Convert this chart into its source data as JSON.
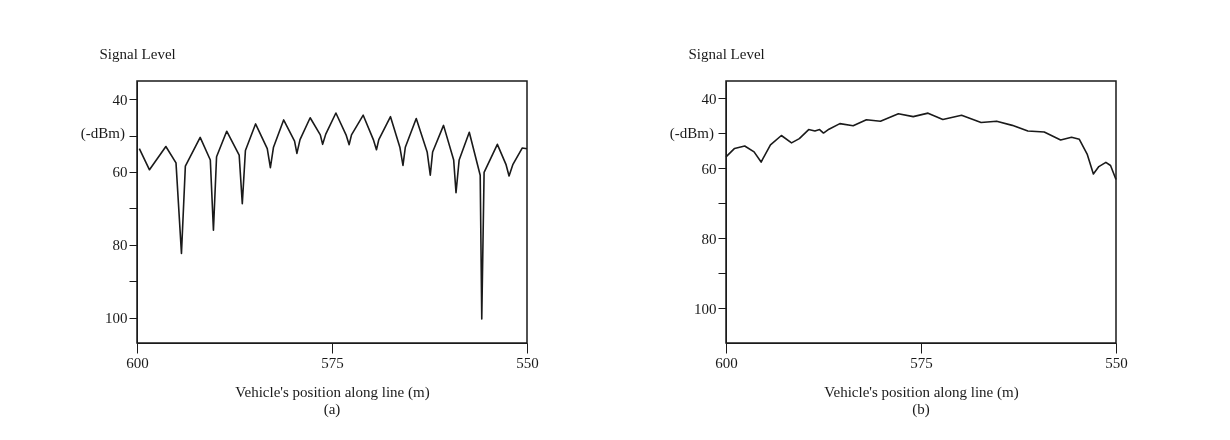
{
  "chart_data": [
    {
      "type": "line",
      "xlabel": "Vehicle's position along line   (m)",
      "ylabel": "Signal Level",
      "annotations": [
        "(-dBm)",
        "(a)"
      ],
      "xlim": [
        600,
        550
      ],
      "ylim": [
        107,
        35
      ],
      "xticks": [
        600,
        575,
        550
      ],
      "yticks": [
        40,
        {
          "value": 50,
          "label": null
        },
        60,
        {
          "value": 70,
          "label": null
        },
        80,
        {
          "value": 90,
          "label": null
        },
        100
      ],
      "grid": false,
      "line_style": "solid",
      "series": [
        {
          "color": "#1a1a1a",
          "x": [
            599.7,
            598.4,
            596.3,
            595.0,
            594.3,
            593.8,
            591.9,
            590.6,
            590.2,
            589.8,
            588.5,
            586.9,
            586.5,
            586.1,
            584.8,
            583.3,
            582.9,
            582.5,
            581.2,
            579.8,
            579.5,
            579.1,
            577.8,
            576.5,
            576.2,
            575.8,
            574.5,
            573.2,
            572.8,
            572.5,
            571.0,
            569.7,
            569.3,
            569.0,
            567.5,
            566.3,
            565.9,
            565.6,
            564.2,
            562.8,
            562.4,
            562.1,
            560.7,
            559.4,
            559.1,
            558.7,
            557.4,
            556.0,
            555.8,
            555.5,
            553.8,
            552.7,
            552.3,
            551.8,
            550.6,
            550.0
          ],
          "values": [
            53.6,
            59.4,
            53.0,
            57.5,
            82.4,
            58.4,
            50.5,
            56.7,
            76.0,
            55.8,
            48.8,
            55.4,
            68.7,
            54.1,
            46.8,
            53.6,
            58.8,
            53.2,
            45.7,
            51.5,
            54.9,
            51.1,
            45.1,
            49.8,
            52.4,
            49.6,
            43.8,
            49.8,
            52.5,
            49.8,
            44.4,
            51.1,
            53.9,
            51.1,
            44.8,
            53.2,
            58.2,
            53.2,
            45.3,
            54.5,
            60.9,
            54.5,
            47.2,
            56.7,
            65.7,
            56.7,
            49.1,
            60.9,
            100.4,
            60.1,
            52.4,
            57.9,
            61.1,
            57.9,
            53.4,
            53.6
          ]
        }
      ]
    },
    {
      "type": "line",
      "xlabel": "Vehicle's position along line   (m)",
      "ylabel": "Signal Level",
      "annotations": [
        "(-dBm)",
        "(b)"
      ],
      "xlim": [
        600,
        550
      ],
      "ylim": [
        110,
        35
      ],
      "xticks": [
        600,
        575,
        550
      ],
      "yticks": [
        40,
        {
          "value": 50,
          "label": null
        },
        60,
        {
          "value": 70,
          "label": null
        },
        80,
        {
          "value": 90,
          "label": null
        },
        100
      ],
      "grid": false,
      "line_style": "solid",
      "series": [
        {
          "color": "#1a1a1a",
          "x": [
            600,
            598.9,
            597.6,
            596.4,
            595.5,
            594.3,
            592.9,
            591.6,
            590.6,
            589.4,
            588.6,
            588.0,
            587.5,
            586.8,
            585.4,
            583.7,
            582.0,
            580.2,
            577.9,
            576.0,
            574.1,
            572.2,
            569.8,
            567.3,
            565.3,
            563.3,
            561.3,
            559.2,
            557.1,
            555.7,
            554.7,
            553.7,
            552.9,
            552.2,
            551.3,
            550.7,
            550.0
          ],
          "values": [
            56.7,
            54.3,
            53.6,
            55.3,
            58.2,
            53.3,
            50.6,
            52.7,
            51.5,
            48.9,
            49.3,
            48.9,
            49.9,
            48.8,
            47.2,
            47.8,
            46.1,
            46.5,
            44.4,
            45.2,
            44.2,
            46.0,
            44.8,
            46.9,
            46.5,
            47.7,
            49.3,
            49.6,
            51.9,
            51.1,
            51.7,
            55.9,
            61.6,
            59.5,
            58.3,
            59.2,
            63.2
          ]
        }
      ]
    }
  ]
}
